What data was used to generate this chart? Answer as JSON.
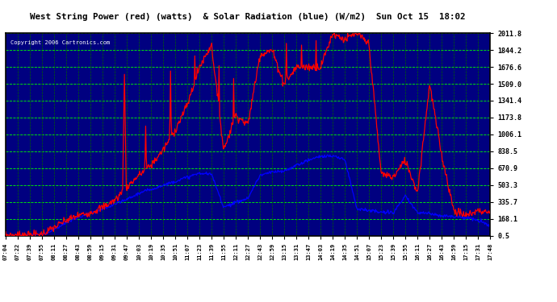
{
  "title": "West String Power (red) (watts)  & Solar Radiation (blue) (W/m2)  Sun Oct 15  18:02",
  "copyright": "Copyright 2006 Cartronics.com",
  "plot_bg_color": "#000080",
  "grid_color_h": "#00FF00",
  "grid_color_v": "#008000",
  "y_ticks": [
    0.5,
    168.1,
    335.7,
    503.3,
    670.9,
    838.5,
    1006.1,
    1173.8,
    1341.4,
    1509.0,
    1676.6,
    1844.2,
    2011.8
  ],
  "ylim": [
    0.5,
    2011.8
  ],
  "x_labels": [
    "07:04",
    "07:22",
    "07:39",
    "07:55",
    "08:11",
    "08:27",
    "08:43",
    "08:59",
    "09:15",
    "09:31",
    "09:47",
    "10:03",
    "10:19",
    "10:35",
    "10:51",
    "11:07",
    "11:23",
    "11:39",
    "11:55",
    "12:11",
    "12:27",
    "12:43",
    "12:59",
    "13:15",
    "13:31",
    "13:47",
    "14:03",
    "14:19",
    "14:35",
    "14:51",
    "15:07",
    "15:23",
    "15:39",
    "15:55",
    "16:11",
    "16:27",
    "16:43",
    "16:59",
    "17:15",
    "17:31",
    "17:48"
  ],
  "red_color": "#FF0000",
  "blue_color": "#0000FF",
  "white_color": "#FFFFFF",
  "outer_bg": "#FFFFFF",
  "title_bg": "#FFFFFF",
  "border_color": "#000000"
}
